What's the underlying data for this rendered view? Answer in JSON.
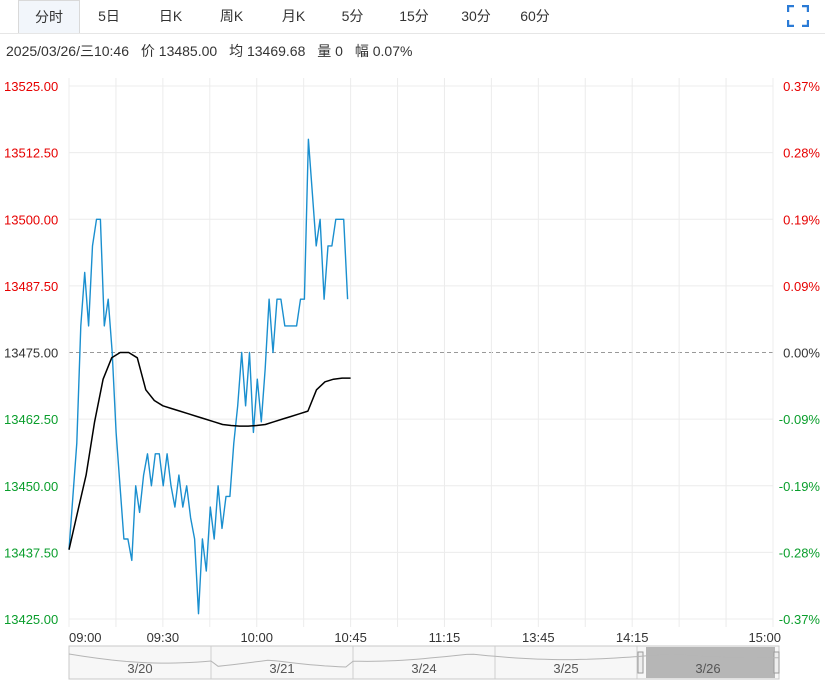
{
  "tabs": [
    {
      "label": "分时",
      "active": true
    },
    {
      "label": "5日"
    },
    {
      "label": "日K"
    },
    {
      "label": "周K"
    },
    {
      "label": "月K"
    },
    {
      "label": "5分"
    },
    {
      "label": "15分"
    },
    {
      "label": "30分"
    },
    {
      "label": "60分"
    }
  ],
  "info": {
    "datetime": "2025/03/26/三10:46",
    "price_label": "价",
    "price": "13485.00",
    "avg_label": "均",
    "avg": "13469.68",
    "vol_label": "量",
    "vol": "0",
    "range_label": "幅",
    "range": "0.07%"
  },
  "colors": {
    "up": "#e60000",
    "down": "#0a9e2c",
    "price_line": "#1a8fcf",
    "avg_line": "#000000",
    "grid": "#ececec",
    "mid_line": "#999999"
  },
  "chart_data": {
    "type": "line",
    "x_ticks": [
      "09:00",
      "09:30",
      "10:00",
      "10:45",
      "11:15",
      "13:45",
      "14:15",
      "15:00"
    ],
    "ylim": [
      13425.0,
      13525.0
    ],
    "prev_close": 13475.0,
    "y_ticks_left": [
      "13525.00",
      "13512.50",
      "13500.00",
      "13487.50",
      "13475.00",
      "13462.50",
      "13450.00",
      "13437.50",
      "13425.00"
    ],
    "y_ticks_right": [
      "0.37%",
      "0.28%",
      "0.19%",
      "0.09%",
      "0.00%",
      "-0.09%",
      "-0.19%",
      "-0.28%",
      "-0.37%"
    ],
    "series": [
      {
        "role": "price",
        "values": [
          13438.0,
          13448.0,
          13458.0,
          13480.0,
          13490.0,
          13480.0,
          13495.0,
          13500.0,
          13500.0,
          13480.0,
          13485.0,
          13475.0,
          13460.0,
          13450.0,
          13440.0,
          13440.0,
          13436.0,
          13450.0,
          13445.0,
          13452.0,
          13456.0,
          13450.0,
          13456.0,
          13456.0,
          13450.0,
          13456.0,
          13450.0,
          13446.0,
          13452.0,
          13446.0,
          13450.0,
          13444.0,
          13440.0,
          13426.0,
          13440.0,
          13434.0,
          13446.0,
          13440.0,
          13450.0,
          13442.0,
          13448.0,
          13448.0,
          13458.0,
          13465.0,
          13475.0,
          13465.0,
          13475.0,
          13460.0,
          13470.0,
          13462.0,
          13472.0,
          13485.0,
          13475.0,
          13485.0,
          13485.0,
          13480.0,
          13480.0,
          13480.0,
          13480.0,
          13485.0,
          13485.0,
          13515.0,
          13505.0,
          13495.0,
          13500.0,
          13485.0,
          13495.0,
          13495.0,
          13500.0,
          13500.0,
          13500.0,
          13485.0
        ]
      },
      {
        "role": "avg",
        "values": [
          13438.0,
          13445.0,
          13452.0,
          13462.0,
          13470.0,
          13474.0,
          13475.0,
          13475.0,
          13474.0,
          13468.0,
          13466.0,
          13465.0,
          13464.5,
          13464.0,
          13463.5,
          13463.0,
          13462.5,
          13462.0,
          13461.5,
          13461.3,
          13461.2,
          13461.2,
          13461.3,
          13461.5,
          13462.0,
          13462.5,
          13463.0,
          13463.5,
          13464.0,
          13468.0,
          13469.5,
          13470.0,
          13470.2,
          13470.2
        ]
      }
    ]
  },
  "navigator": {
    "dates": [
      "3/20",
      "3/21",
      "3/24",
      "3/25",
      "3/26"
    ]
  }
}
